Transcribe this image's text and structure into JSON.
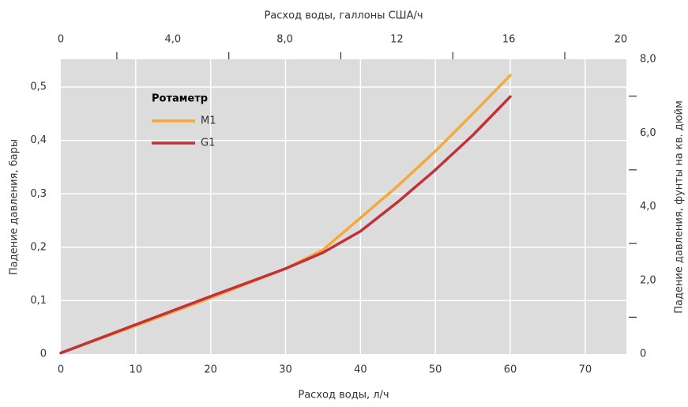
{
  "chart_data": {
    "type": "line",
    "xlabel": "Расход воды, л/ч",
    "x2label": "Расход воды, галлоны США/ч",
    "ylabel": "Падение давления, бары",
    "y2label": "Падение давления, фунты на кв. дюйм",
    "legend_title": "Ротаметр",
    "legend": "upper left",
    "grid": true,
    "background": "#dcdcdc",
    "x": [
      0,
      10,
      20,
      30,
      35,
      40,
      45,
      50,
      55,
      60
    ],
    "series": [
      {
        "name": "M1",
        "color": "#f5a93a",
        "values": [
          0.002,
          0.053,
          0.105,
          0.16,
          0.195,
          0.255,
          0.315,
          0.38,
          0.45,
          0.522
        ]
      },
      {
        "name": "G1",
        "color": "#c0323a",
        "values": [
          0.002,
          0.055,
          0.108,
          0.16,
          0.19,
          0.23,
          0.285,
          0.345,
          0.41,
          0.482
        ]
      }
    ],
    "xlim": [
      0,
      75.5
    ],
    "xticks": [
      0,
      10,
      20,
      30,
      40,
      50,
      60,
      70
    ],
    "x2lim": [
      0,
      20.2
    ],
    "x2ticks": [
      0,
      {
        "value": 4,
        "label": "4,0"
      },
      {
        "value": 8,
        "label": "8,0"
      },
      12,
      16,
      20
    ],
    "x2ticks_minor": [
      2,
      6,
      10,
      14,
      18
    ],
    "ylim": [
      0,
      0.552
    ],
    "yticks": [
      0,
      {
        "value": 0.1,
        "label": "0,1"
      },
      {
        "value": 0.2,
        "label": "0,2"
      },
      {
        "value": 0.3,
        "label": "0,3"
      },
      {
        "value": 0.4,
        "label": "0,4"
      },
      {
        "value": 0.5,
        "label": "0,5"
      }
    ],
    "y2lim": [
      0,
      8
    ],
    "y2ticks": [
      0,
      {
        "value": 2,
        "label": "2,0"
      },
      {
        "value": 4,
        "label": "4,0"
      },
      {
        "value": 6,
        "label": "6,0"
      },
      {
        "value": 8,
        "label": "8,0"
      }
    ],
    "y2ticks_minor": [
      1,
      3,
      5,
      7
    ]
  }
}
